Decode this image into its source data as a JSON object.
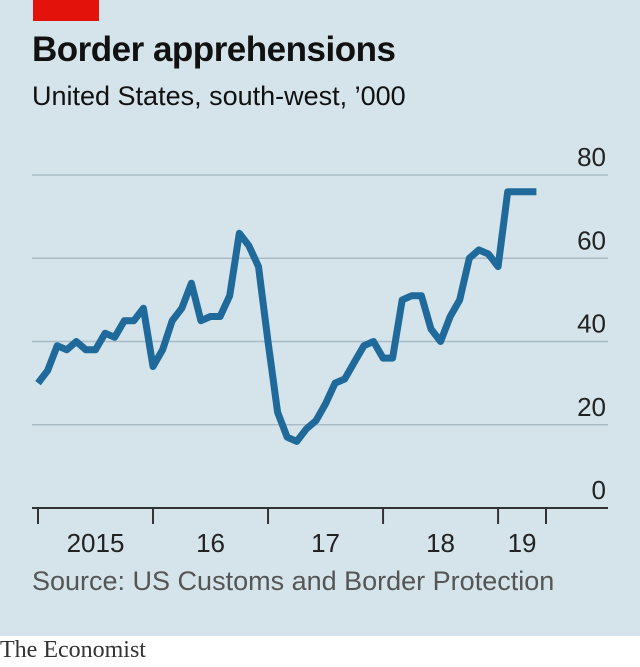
{
  "colors": {
    "background": "#d5e4eb",
    "accent": "#e3120b",
    "line": "#1f6a9a",
    "grid": "#a9bcc6",
    "axis": "#333333"
  },
  "header": {
    "title": "Border apprehensions",
    "subtitle": "United States, south-west, ’000"
  },
  "footer": {
    "source": "Source: US Customs and Border Protection",
    "brand": "The Economist"
  },
  "chart_data": {
    "type": "line",
    "title": "Border apprehensions",
    "subtitle": "United States, south-west, ’000",
    "xlabel": "",
    "ylabel": "",
    "ylim": [
      0,
      80
    ],
    "yticks": [
      0,
      20,
      40,
      60,
      80
    ],
    "y_tick_labels": [
      "0",
      "20",
      "40",
      "60",
      "80"
    ],
    "x_tick_labels": [
      "2015",
      "16",
      "17",
      "18",
      "19"
    ],
    "xlim": [
      "2014-10",
      "2019-03"
    ],
    "grid": true,
    "series": [
      {
        "x": [
          "2014-10",
          "2014-11",
          "2014-12",
          "2015-01",
          "2015-02",
          "2015-03",
          "2015-04",
          "2015-05",
          "2015-06",
          "2015-07",
          "2015-08",
          "2015-09",
          "2015-10",
          "2015-11",
          "2015-12",
          "2016-01",
          "2016-02",
          "2016-03",
          "2016-04",
          "2016-05",
          "2016-06",
          "2016-07",
          "2016-08",
          "2016-09",
          "2016-10",
          "2016-11",
          "2016-12",
          "2017-01",
          "2017-02",
          "2017-03",
          "2017-04",
          "2017-05",
          "2017-06",
          "2017-07",
          "2017-08",
          "2017-09",
          "2017-10",
          "2017-11",
          "2017-12",
          "2018-01",
          "2018-02",
          "2018-03",
          "2018-04",
          "2018-05",
          "2018-06",
          "2018-07",
          "2018-08",
          "2018-09",
          "2018-10",
          "2018-11",
          "2018-12",
          "2019-01",
          "2019-02"
        ],
        "values": [
          30,
          33,
          39,
          38,
          40,
          38,
          38,
          42,
          41,
          45,
          45,
          48,
          34,
          38,
          45,
          48,
          54,
          45,
          46,
          46,
          51,
          66,
          63,
          58,
          40,
          23,
          17,
          16,
          19,
          21,
          25,
          30,
          31,
          35,
          39,
          40,
          36,
          36,
          50,
          51,
          51,
          43,
          40,
          46,
          50,
          60,
          62,
          61,
          58,
          76,
          76,
          76,
          76
        ]
      }
    ]
  }
}
